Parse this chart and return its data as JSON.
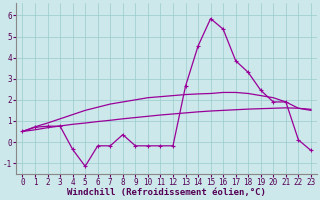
{
  "background_color": "#cce8ea",
  "grid_color": "#99cccc",
  "line_color": "#990099",
  "xlabel": "Windchill (Refroidissement éolien,°C)",
  "xlabel_fontsize": 6.5,
  "tick_fontsize": 5.5,
  "xlim": [
    -0.5,
    23.5
  ],
  "ylim": [
    -1.5,
    6.6
  ],
  "yticks": [
    -1,
    0,
    1,
    2,
    3,
    4,
    5,
    6
  ],
  "xticks": [
    0,
    1,
    2,
    3,
    4,
    5,
    6,
    7,
    8,
    9,
    10,
    11,
    12,
    13,
    14,
    15,
    16,
    17,
    18,
    19,
    20,
    21,
    22,
    23
  ],
  "curve1_x": [
    0,
    1,
    2,
    3,
    4,
    5,
    6,
    7,
    8,
    9,
    10,
    11,
    12,
    13,
    14,
    15,
    16,
    17,
    18,
    19,
    20,
    21,
    22,
    23
  ],
  "curve1_y": [
    0.5,
    0.7,
    0.75,
    0.75,
    -0.35,
    -1.15,
    -0.18,
    -0.18,
    0.35,
    -0.18,
    -0.18,
    -0.18,
    -0.18,
    2.65,
    4.55,
    5.85,
    5.35,
    3.85,
    3.3,
    2.45,
    1.9,
    1.9,
    0.1,
    -0.4
  ],
  "curve2_x": [
    0,
    1,
    2,
    3,
    4,
    5,
    6,
    7,
    8,
    9,
    10,
    11,
    12,
    13,
    14,
    15,
    16,
    17,
    18,
    19,
    20,
    21,
    22,
    23
  ],
  "curve2_y": [
    0.5,
    0.72,
    0.9,
    1.1,
    1.3,
    1.5,
    1.65,
    1.8,
    1.9,
    2.0,
    2.1,
    2.15,
    2.2,
    2.25,
    2.28,
    2.3,
    2.35,
    2.35,
    2.3,
    2.2,
    2.1,
    1.9,
    1.6,
    1.5
  ],
  "curve3_x": [
    0,
    1,
    2,
    3,
    4,
    5,
    6,
    7,
    8,
    9,
    10,
    11,
    12,
    13,
    14,
    15,
    16,
    17,
    18,
    19,
    20,
    21,
    22,
    23
  ],
  "curve3_y": [
    0.5,
    0.58,
    0.68,
    0.76,
    0.84,
    0.9,
    0.97,
    1.03,
    1.1,
    1.16,
    1.22,
    1.28,
    1.33,
    1.38,
    1.43,
    1.47,
    1.5,
    1.53,
    1.56,
    1.58,
    1.6,
    1.62,
    1.6,
    1.55
  ]
}
